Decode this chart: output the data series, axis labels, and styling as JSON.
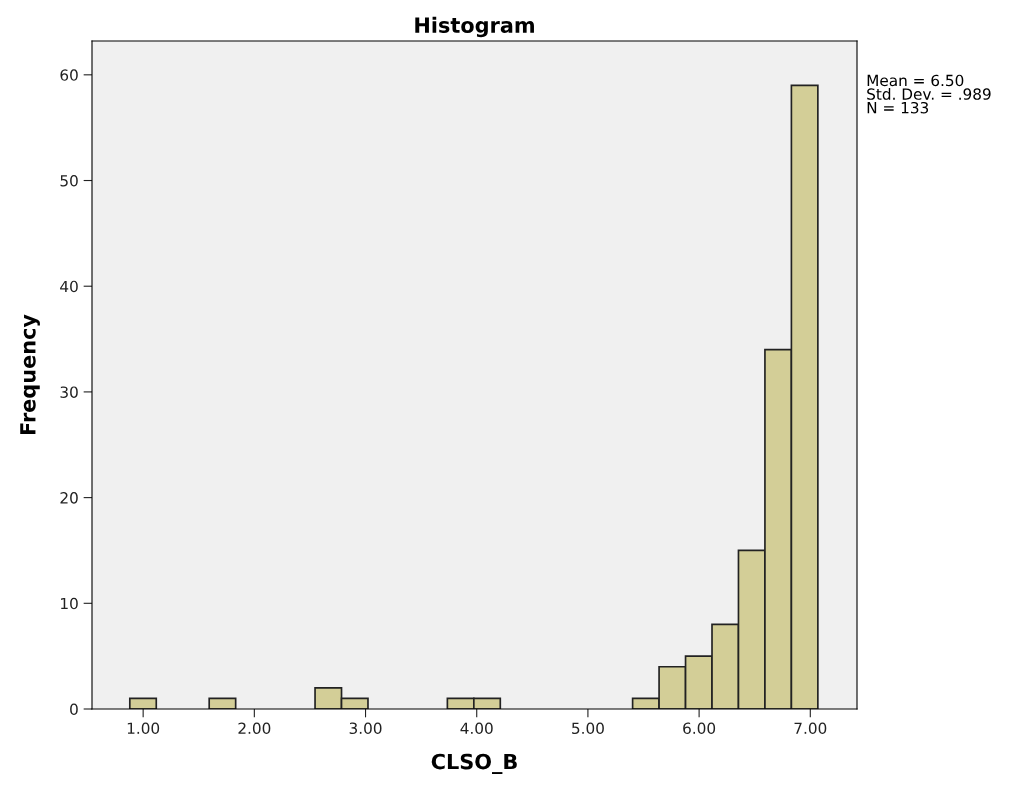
{
  "chart_data": {
    "type": "histogram",
    "title": "Histogram",
    "xlabel": "CLSO_B",
    "ylabel": "Frequency",
    "bins": [
      0.88,
      1.118,
      1.356,
      1.594,
      1.832,
      2.07,
      2.308,
      2.546,
      2.784,
      3.022,
      3.26,
      3.498,
      3.736,
      3.974,
      4.212,
      4.45,
      4.688,
      4.926,
      5.164,
      5.402,
      5.64,
      5.878,
      6.116,
      6.354,
      6.592,
      6.83,
      7.068
    ],
    "values": [
      1,
      0,
      0,
      1,
      0,
      0,
      0,
      2,
      1,
      0,
      0,
      0,
      1,
      1,
      0,
      0,
      0,
      0,
      0,
      1,
      4,
      5,
      8,
      15,
      34,
      59
    ],
    "color": "#d3ce97",
    "xlim": [
      0.54,
      7.42
    ],
    "xticks": [
      {
        "value": 1,
        "label": "1.00"
      },
      {
        "value": 2,
        "label": "2.00"
      },
      {
        "value": 3,
        "label": "3.00"
      },
      {
        "value": 4,
        "label": "4.00"
      },
      {
        "value": 5,
        "label": "5.00"
      },
      {
        "value": 6,
        "label": "6.00"
      },
      {
        "value": 7,
        "label": "7.00"
      }
    ],
    "ylim": [
      0,
      63.2
    ],
    "yticks": [
      0,
      10,
      20,
      30,
      40,
      50,
      60
    ],
    "grid": false,
    "annotations": [
      "Mean = 6.50\nStd. Dev. = .989\nN = 133"
    ]
  }
}
